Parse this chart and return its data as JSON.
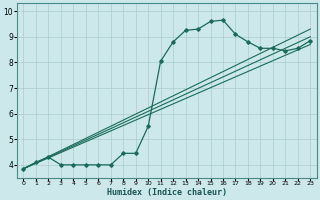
{
  "xlabel": "Humidex (Indice chaleur)",
  "xlim": [
    -0.5,
    23.5
  ],
  "ylim": [
    3.5,
    10.3
  ],
  "xticks": [
    0,
    1,
    2,
    3,
    4,
    5,
    6,
    7,
    8,
    9,
    10,
    11,
    12,
    13,
    14,
    15,
    16,
    17,
    18,
    19,
    20,
    21,
    22,
    23
  ],
  "yticks": [
    4,
    5,
    6,
    7,
    8,
    9,
    10
  ],
  "bg_color": "#cce8ea",
  "grid_color": "#aacccc",
  "line_color": "#1a6b5a",
  "curve_x": [
    0,
    1,
    2,
    3,
    4,
    5,
    6,
    7,
    8,
    9,
    10,
    11,
    12,
    13,
    14,
    15,
    16,
    17,
    18,
    19,
    20,
    21,
    22,
    23
  ],
  "curve_y": [
    3.85,
    4.1,
    4.3,
    4.0,
    4.0,
    4.0,
    4.0,
    4.0,
    4.45,
    4.45,
    5.5,
    8.05,
    8.8,
    9.25,
    9.3,
    9.6,
    9.65,
    9.1,
    8.8,
    8.55,
    8.55,
    8.45,
    8.55,
    8.85
  ],
  "line2_x": [
    0,
    23
  ],
  "line2_y": [
    3.85,
    8.7
  ],
  "line3_x": [
    0,
    23
  ],
  "line3_y": [
    3.85,
    9.0
  ],
  "line4_x": [
    0,
    23
  ],
  "line4_y": [
    3.85,
    9.3
  ]
}
